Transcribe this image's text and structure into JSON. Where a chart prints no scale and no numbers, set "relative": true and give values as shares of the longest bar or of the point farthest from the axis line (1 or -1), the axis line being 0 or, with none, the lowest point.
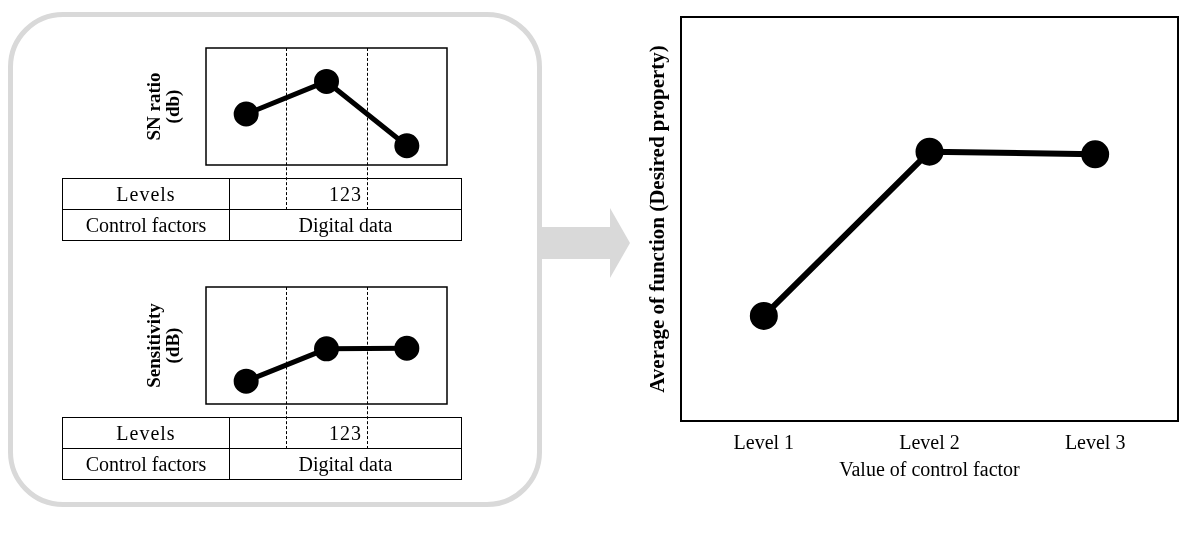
{
  "chart_data": [
    {
      "type": "line",
      "ylabel": "SN ratio (db)",
      "categories": [
        null,
        null,
        null
      ],
      "values": [
        0.61,
        1,
        0.23
      ],
      "color": "#000000",
      "relative": true,
      "marker": "circle",
      "tick_labels": false,
      "annotations": [
        "Levels",
        "123",
        "Control factors",
        "Digital data"
      ]
    },
    {
      "type": "line",
      "ylabel": "Sensitivity (dB)",
      "categories": [
        null,
        null,
        null
      ],
      "values": [
        0.41,
        0.99,
        1
      ],
      "color": "#000000",
      "relative": true,
      "marker": "circle",
      "tick_labels": false,
      "annotations": [
        "Levels",
        "123",
        "Control factors",
        "Digital data"
      ]
    },
    {
      "type": "line",
      "xlabel": "Value of control factor",
      "ylabel": "Average of function (Desired property)",
      "categories": [
        "Level 1",
        "Level 2",
        "Level 3"
      ],
      "values": [
        0.39,
        1,
        0.99
      ],
      "color": "#000000",
      "relative": true,
      "marker": "circle",
      "tick_labels": "x"
    }
  ]
}
